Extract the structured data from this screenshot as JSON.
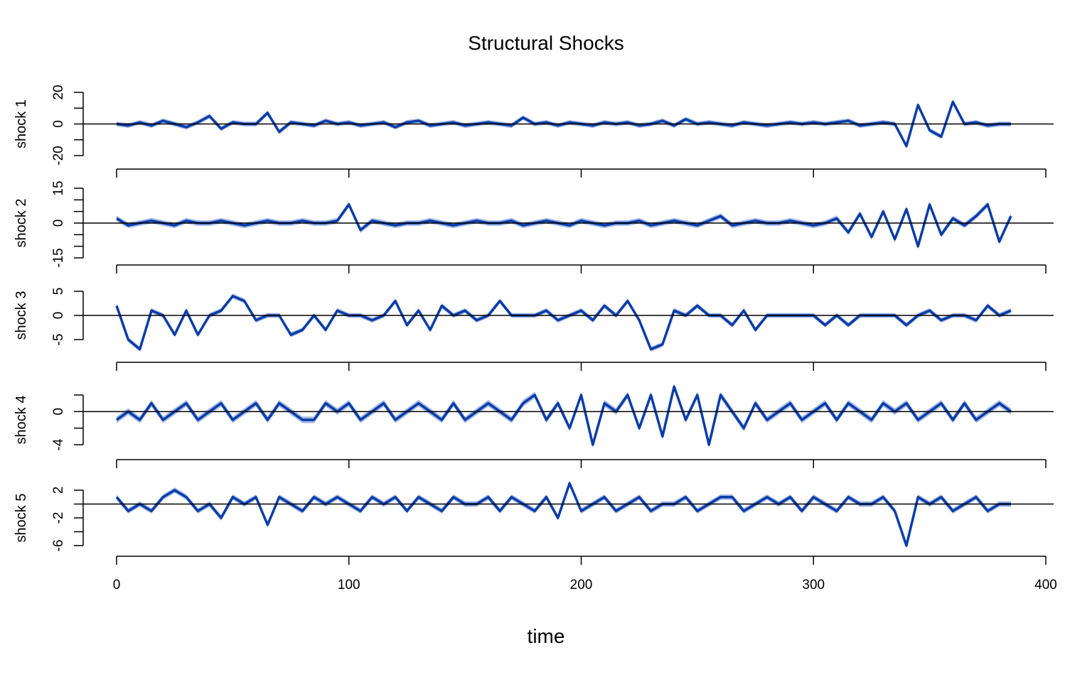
{
  "chart_data": {
    "type": "line",
    "title": "Structural Shocks",
    "xlabel": "time",
    "xlim": [
      0,
      400
    ],
    "x_ticks": [
      "0",
      "100",
      "200",
      "300",
      "400"
    ],
    "x_start": 0,
    "x_step": 5,
    "line_color": "#0a3ca8",
    "band_color": "#5a7fd0",
    "grid": false,
    "series": [
      {
        "name": "shock 1",
        "ylim": [
          -20,
          20
        ],
        "ytick_values": [
          -20,
          -10,
          0,
          10,
          20
        ],
        "ytick_labels": [
          "-20",
          "",
          "0",
          "",
          "20"
        ],
        "band_halfwidth": 1.5,
        "values": [
          0,
          -1,
          1,
          -1,
          2,
          0,
          -2,
          1,
          5,
          -3,
          1,
          0,
          0,
          7,
          -5,
          1,
          0,
          -1,
          2,
          0,
          1,
          -1,
          0,
          1,
          -2,
          1,
          2,
          -1,
          0,
          1,
          -1,
          0,
          1,
          0,
          -1,
          4,
          0,
          1,
          -1,
          1,
          0,
          -1,
          1,
          0,
          1,
          -1,
          0,
          2,
          -1,
          3,
          0,
          1,
          0,
          -1,
          1,
          0,
          -1,
          0,
          1,
          0,
          1,
          0,
          1,
          2,
          -1,
          0,
          1,
          0,
          -14,
          12,
          -4,
          -8,
          14,
          0,
          1,
          -1,
          0,
          0
        ]
      },
      {
        "name": "shock 2",
        "ylim": [
          -15,
          15
        ],
        "ytick_values": [
          -15,
          -10,
          -5,
          0,
          5,
          10,
          15
        ],
        "ytick_labels": [
          "-15",
          "",
          "",
          "0",
          "",
          "",
          "15"
        ],
        "band_halfwidth": 1.2,
        "values": [
          2,
          -1,
          0,
          1,
          0,
          -1,
          1,
          0,
          0,
          1,
          0,
          -1,
          0,
          1,
          0,
          0,
          1,
          0,
          0,
          1,
          8,
          -3,
          1,
          0,
          -1,
          0,
          0,
          1,
          0,
          -1,
          0,
          1,
          0,
          0,
          1,
          -1,
          0,
          1,
          0,
          -1,
          1,
          0,
          -1,
          0,
          0,
          1,
          -1,
          0,
          1,
          0,
          -1,
          1,
          3,
          -1,
          0,
          1,
          0,
          0,
          1,
          0,
          -1,
          0,
          2,
          -4,
          4,
          -6,
          5,
          -7,
          6,
          -10,
          8,
          -5,
          2,
          -1,
          3,
          8,
          -8,
          3
        ]
      },
      {
        "name": "shock 3",
        "ylim": [
          -5,
          5
        ],
        "ytick_values": [
          -5,
          0,
          5
        ],
        "ytick_labels": [
          "-5",
          "0",
          "5"
        ],
        "band_halfwidth": 0.5,
        "values": [
          2,
          -5,
          -7,
          1,
          0,
          -4,
          1,
          -4,
          0,
          1,
          4,
          3,
          -1,
          0,
          0,
          -4,
          -3,
          0,
          -3,
          1,
          0,
          0,
          -1,
          0,
          3,
          -2,
          1,
          -3,
          2,
          0,
          1,
          -1,
          0,
          3,
          0,
          0,
          0,
          1,
          -1,
          0,
          1,
          -1,
          2,
          0,
          3,
          -1,
          -7,
          -6,
          1,
          0,
          2,
          0,
          0,
          -2,
          1,
          -3,
          0,
          0,
          0,
          0,
          0,
          -2,
          0,
          -2,
          0,
          0,
          0,
          0,
          -2,
          0,
          1,
          -1,
          0,
          0,
          -1,
          2,
          0,
          1
        ]
      },
      {
        "name": "shock 4",
        "ylim": [
          -4,
          2
        ],
        "ytick_values": [
          -4,
          -2,
          0,
          2
        ],
        "ytick_labels": [
          "-4",
          "",
          "0",
          ""
        ],
        "band_halfwidth": 0.4,
        "values": [
          -1,
          0,
          -1,
          1,
          -1,
          0,
          1,
          -1,
          0,
          1,
          -1,
          0,
          1,
          -1,
          1,
          0,
          -1,
          -1,
          1,
          0,
          1,
          -1,
          0,
          1,
          -1,
          0,
          1,
          0,
          -1,
          1,
          -1,
          0,
          1,
          0,
          -1,
          1,
          2,
          -1,
          1,
          -2,
          2,
          -4,
          1,
          0,
          2,
          -2,
          2,
          -3,
          3,
          -1,
          2,
          -4,
          2,
          0,
          -2,
          1,
          -1,
          0,
          1,
          -1,
          0,
          1,
          -1,
          1,
          0,
          -1,
          1,
          0,
          1,
          -1,
          0,
          1,
          -1,
          1,
          -1,
          0,
          1,
          0
        ]
      },
      {
        "name": "shock 5",
        "ylim": [
          -6,
          2
        ],
        "ytick_values": [
          -6,
          -4,
          -2,
          0,
          2
        ],
        "ytick_labels": [
          "-6",
          "",
          "-2",
          "",
          "2"
        ],
        "band_halfwidth": 0.4,
        "values": [
          1,
          -1,
          0,
          -1,
          1,
          2,
          1,
          -1,
          0,
          -2,
          1,
          0,
          1,
          -3,
          1,
          0,
          -1,
          1,
          0,
          1,
          0,
          -1,
          1,
          0,
          1,
          -1,
          1,
          0,
          -1,
          1,
          0,
          0,
          1,
          -1,
          1,
          0,
          -1,
          1,
          -2,
          3,
          -1,
          0,
          1,
          -1,
          0,
          1,
          -1,
          0,
          0,
          1,
          -1,
          0,
          1,
          1,
          -1,
          0,
          1,
          0,
          1,
          -1,
          1,
          0,
          -1,
          1,
          0,
          0,
          1,
          -1,
          -6,
          1,
          0,
          1,
          -1,
          0,
          1,
          -1,
          0,
          0
        ]
      }
    ]
  }
}
